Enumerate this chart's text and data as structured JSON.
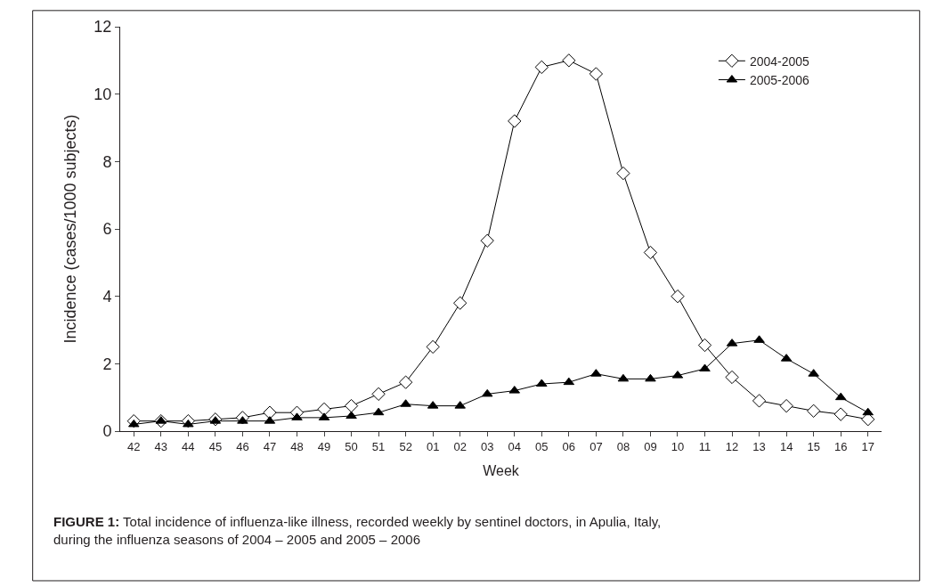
{
  "chart_data": {
    "type": "line",
    "xlabel": "Week",
    "ylabel": "Incidence (cases/1000 subjects)",
    "categories": [
      "42",
      "43",
      "44",
      "45",
      "46",
      "47",
      "48",
      "49",
      "50",
      "51",
      "52",
      "01",
      "02",
      "03",
      "04",
      "05",
      "06",
      "07",
      "08",
      "09",
      "10",
      "11",
      "12",
      "13",
      "14",
      "15",
      "16",
      "17"
    ],
    "series": [
      {
        "name": "2004-2005",
        "color": "#000000",
        "marker": "diamond",
        "values": [
          0.3,
          0.3,
          0.3,
          0.35,
          0.4,
          0.55,
          0.55,
          0.65,
          0.75,
          1.1,
          1.45,
          2.5,
          3.8,
          5.65,
          9.2,
          10.8,
          11.0,
          10.6,
          7.65,
          5.3,
          4.0,
          2.55,
          1.6,
          0.9,
          0.75,
          0.6,
          0.5,
          0.35
        ]
      },
      {
        "name": "2005-2006",
        "color": "#000000",
        "marker": "triangle",
        "values": [
          0.2,
          0.3,
          0.2,
          0.3,
          0.3,
          0.3,
          0.4,
          0.4,
          0.45,
          0.55,
          0.8,
          0.75,
          0.75,
          1.1,
          1.2,
          1.4,
          1.45,
          1.7,
          1.55,
          1.55,
          1.65,
          1.85,
          2.6,
          2.7,
          2.15,
          1.7,
          1.0,
          0.55
        ]
      }
    ],
    "ylim": [
      0,
      12
    ],
    "yticks": [
      0,
      2,
      4,
      6,
      8,
      10,
      12
    ],
    "legend": "top right",
    "annotations": [
      "**FIGURE 1:** Total incidence of influenza-like illness, recorded weekly by sentinel doctors, in Apulia, Italy, during the influenza seasons of 2004 – 2005 and 2005 – 2006"
    ]
  }
}
